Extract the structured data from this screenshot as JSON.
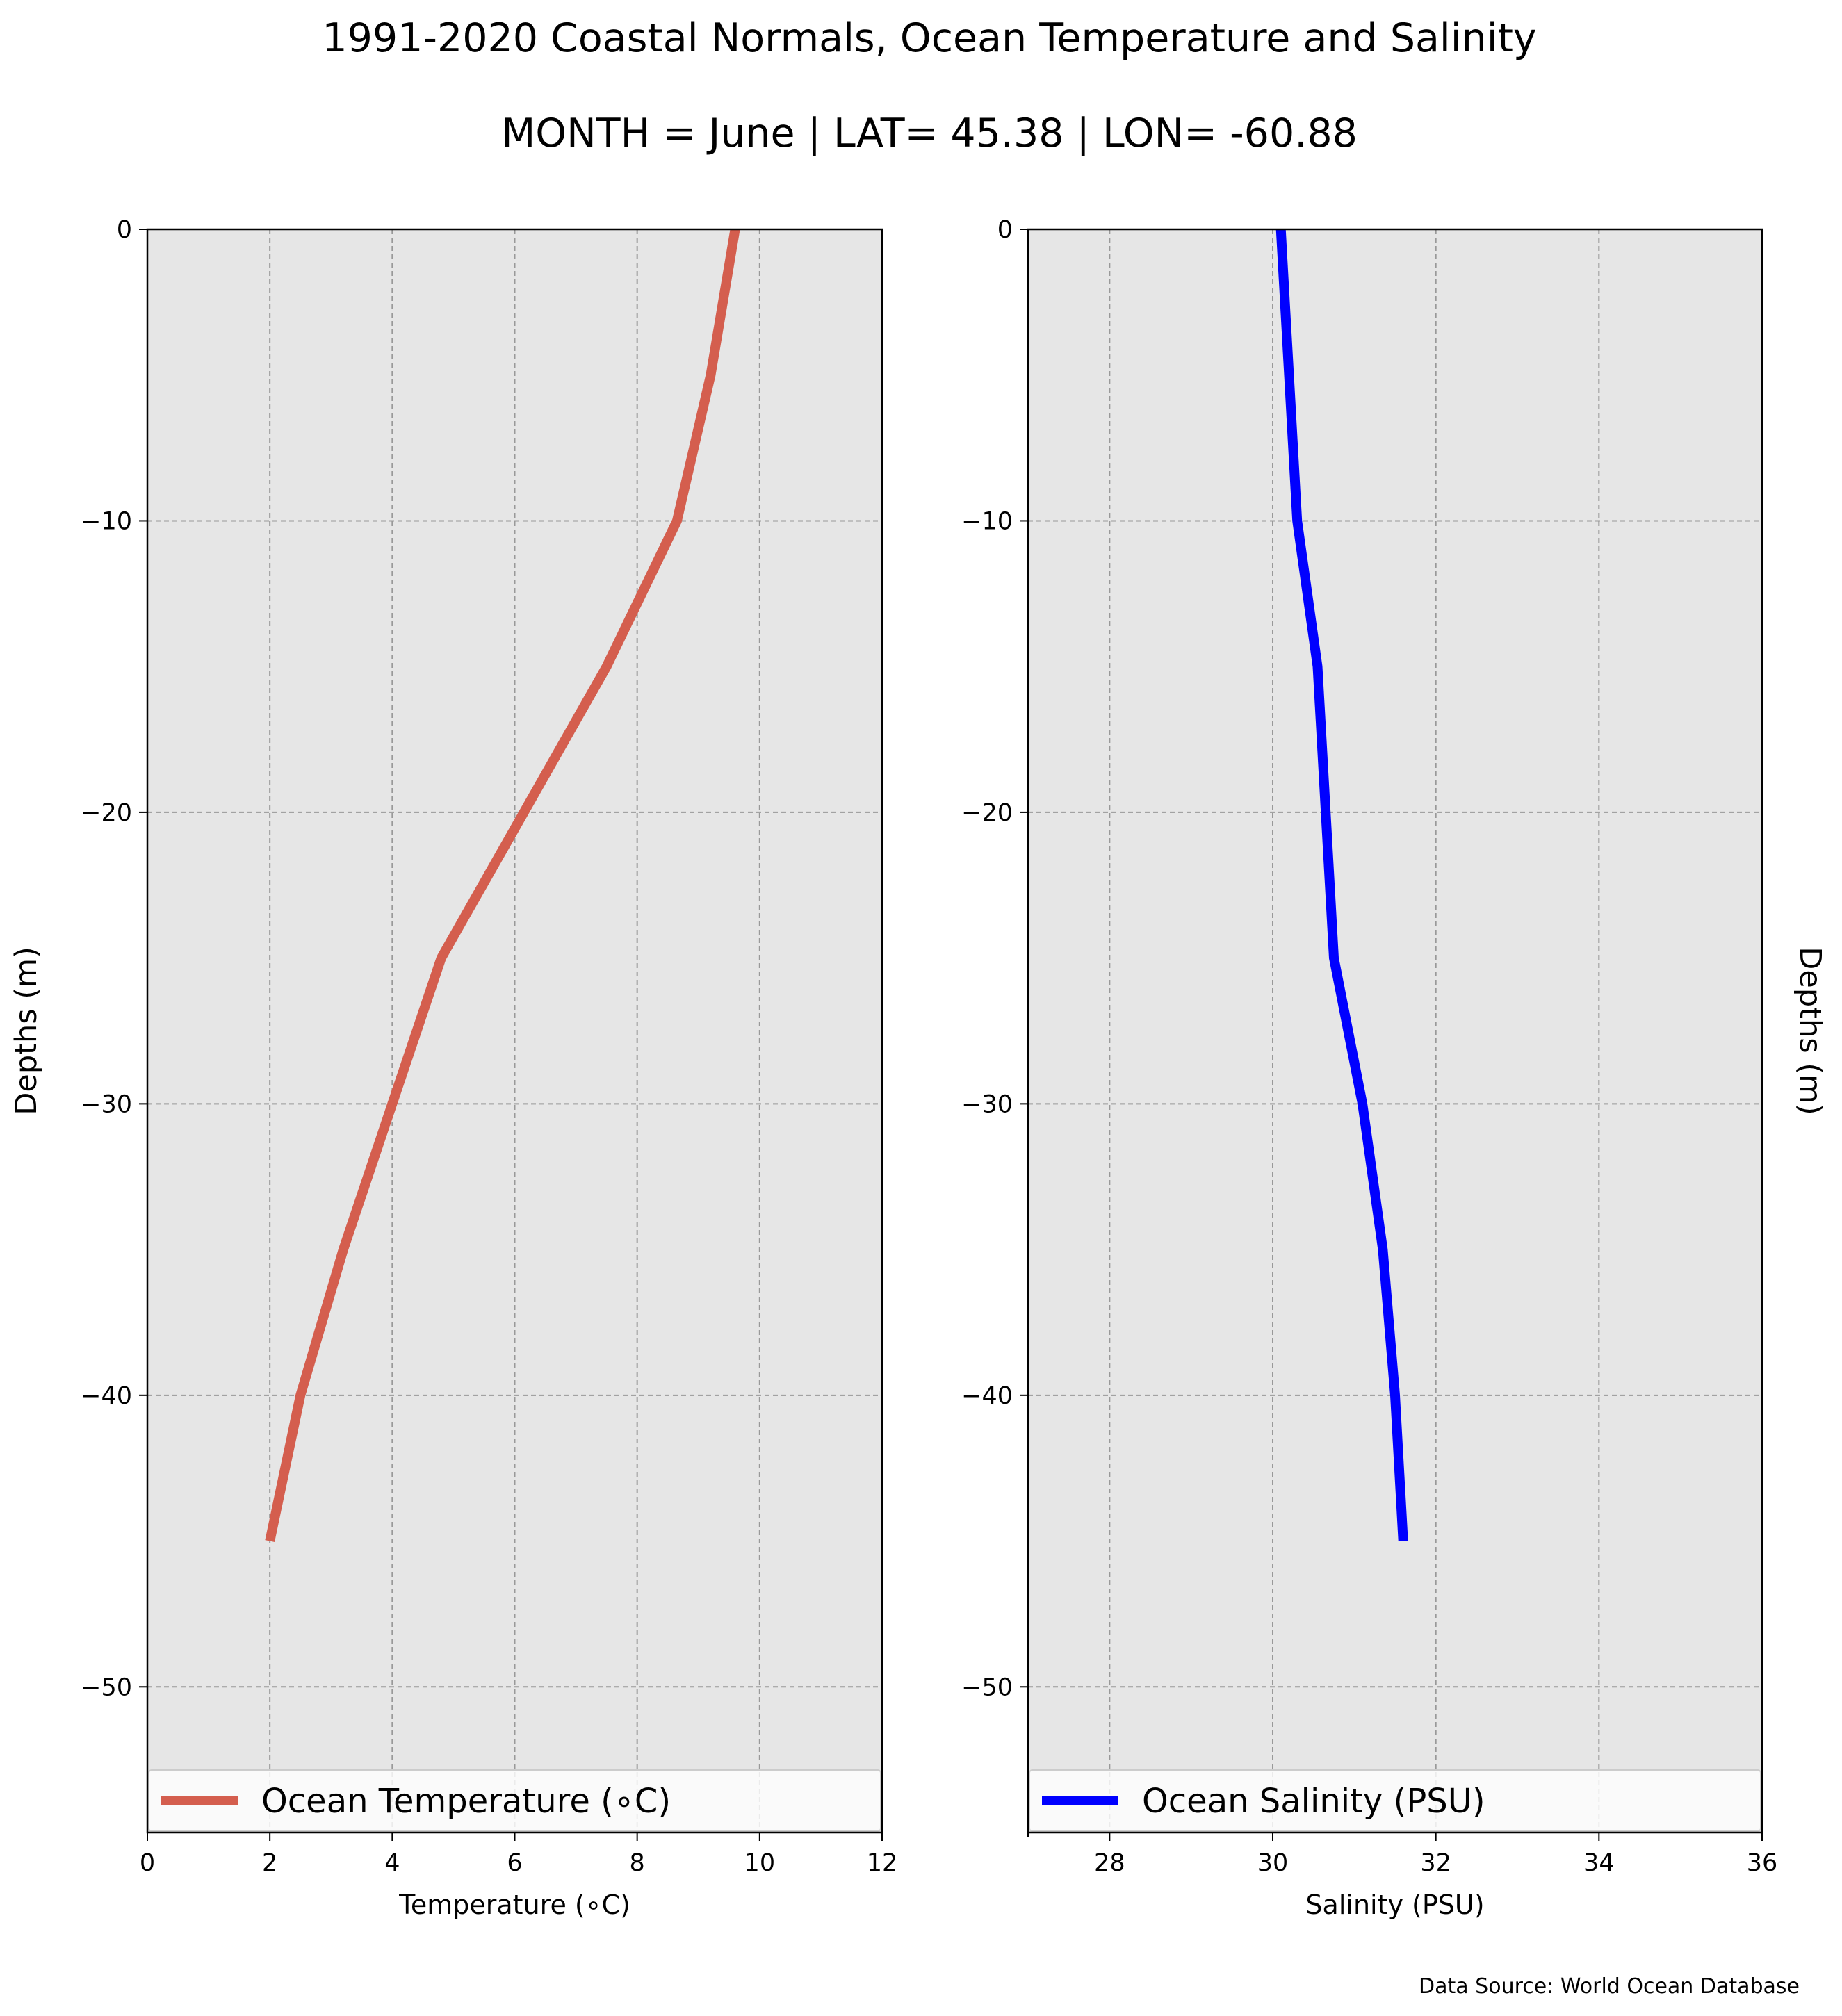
{
  "figure": {
    "title": "1991-2020 Coastal Normals, Ocean Temperature and Salinity",
    "subtitle": "MONTH = June | LAT= 45.38 | LON= -60.88",
    "source": "Data Source: World Ocean Database",
    "background": "#e6e6e6"
  },
  "chart_data": [
    {
      "type": "line",
      "ylabel": "Depths (m)",
      "xlabel": "Temperature (∘C)",
      "xlim": [
        0,
        12
      ],
      "ylim": [
        -55,
        0
      ],
      "xticks": [
        0,
        2,
        4,
        6,
        8,
        10,
        12
      ],
      "yticks": [
        0,
        -10,
        -20,
        -30,
        -40,
        -50
      ],
      "ytick_labels": [
        "0",
        "−10",
        "−20",
        "−30",
        "−40",
        "−50"
      ],
      "grid": true,
      "legend": "lower center",
      "series": [
        {
          "name": "Ocean Temperature (∘C)",
          "color": "#d45e4e",
          "x": [
            9.6,
            9.2,
            8.65,
            7.5,
            4.8,
            4.0,
            3.2,
            2.5,
            2.0
          ],
          "y": [
            0,
            -5,
            -10,
            -15,
            -25,
            -30,
            -35,
            -40,
            -45
          ]
        }
      ]
    },
    {
      "type": "line",
      "ylabel": "Depths (m)",
      "xlabel": "Salinity (PSU)",
      "xlim": [
        27,
        36
      ],
      "ylim": [
        -55,
        0
      ],
      "xticks": [
        28,
        30,
        32,
        34,
        36
      ],
      "yticks": [
        0,
        -10,
        -20,
        -30,
        -40,
        -50
      ],
      "ytick_labels": [
        "0",
        "−10",
        "−20",
        "−30",
        "−40",
        "−50"
      ],
      "grid": true,
      "legend": "lower center",
      "series": [
        {
          "name": "Ocean Salinity (PSU)",
          "color": "#0000ff",
          "x": [
            30.1,
            30.3,
            30.55,
            30.75,
            31.1,
            31.35,
            31.5,
            31.6
          ],
          "y": [
            0,
            -10,
            -15,
            -25,
            -30,
            -35,
            -40,
            -45
          ]
        }
      ]
    }
  ]
}
